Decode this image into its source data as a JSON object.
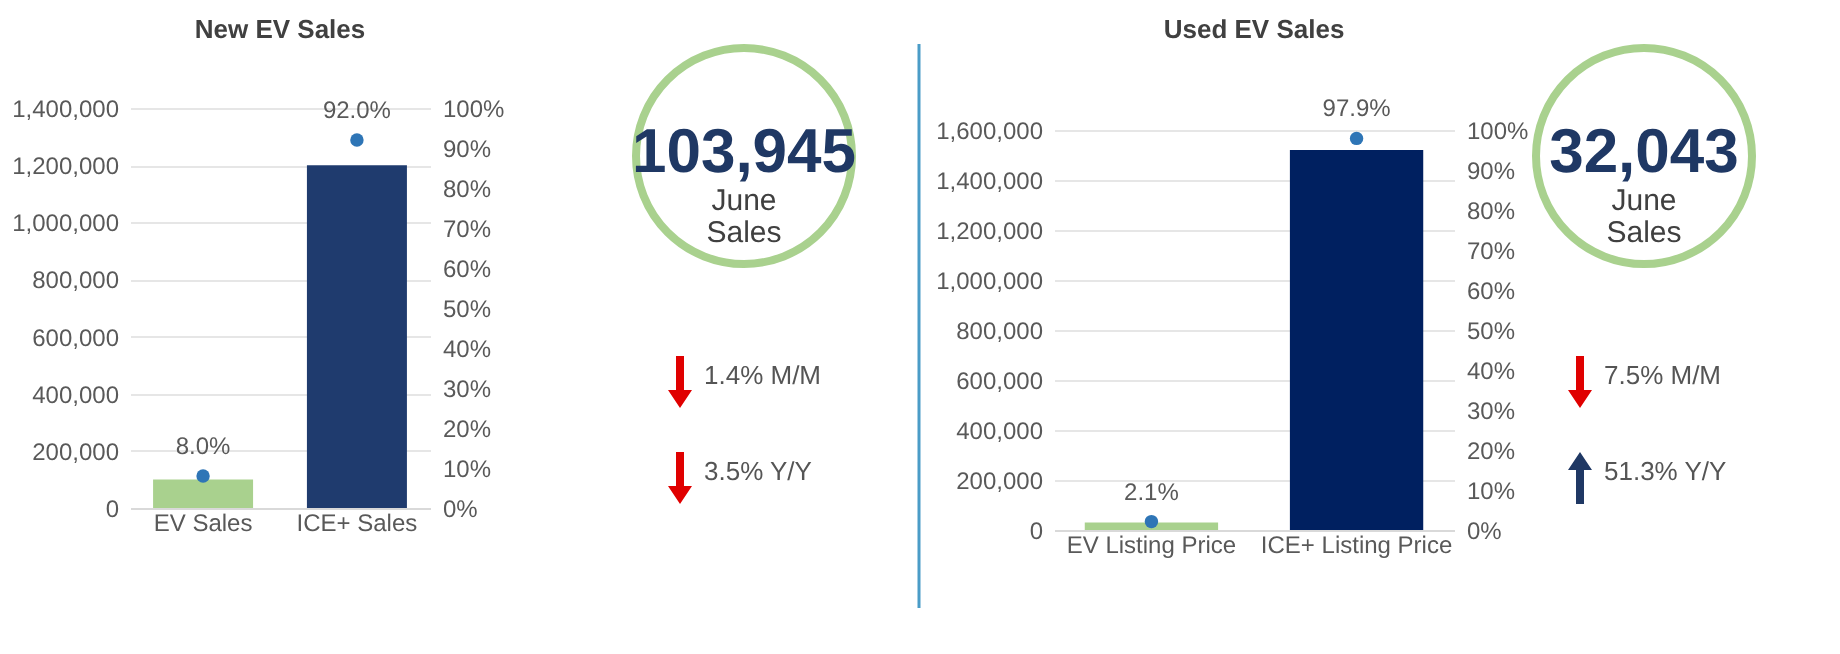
{
  "chart_data": [
    {
      "type": "bar",
      "title": "New EV Sales",
      "categories": [
        "EV Sales",
        "ICE+ Sales"
      ],
      "series": [
        {
          "type": "bar",
          "colors": [
            "#a9d18e",
            "#1f3b6e"
          ],
          "values": [
            100000,
            1200000
          ]
        },
        {
          "type": "scatter",
          "axis": "y2",
          "color": "#2e75b6",
          "values": [
            8.0,
            92.0
          ],
          "value_labels": [
            "8.0%",
            "92.0%"
          ]
        }
      ],
      "ylim": [
        0,
        1400000
      ],
      "yticks": [
        0,
        {
          "value": 200000,
          "label": "200,000"
        },
        {
          "value": 400000,
          "label": "400,000"
        },
        {
          "value": 600000,
          "label": "600,000"
        },
        {
          "value": 800000,
          "label": "800,000"
        },
        {
          "value": 1000000,
          "label": "1,000,000"
        },
        {
          "value": 1200000,
          "label": "1,200,000"
        },
        {
          "value": 1400000,
          "label": "1,400,000"
        }
      ],
      "y2lim": [
        0,
        100
      ],
      "y2ticks": [
        {
          "value": 0,
          "label": "0%"
        },
        {
          "value": 10,
          "label": "10%"
        },
        {
          "value": 20,
          "label": "20%"
        },
        {
          "value": 30,
          "label": "30%"
        },
        {
          "value": 40,
          "label": "40%"
        },
        {
          "value": 50,
          "label": "50%"
        },
        {
          "value": 60,
          "label": "60%"
        },
        {
          "value": 70,
          "label": "70%"
        },
        {
          "value": 80,
          "label": "80%"
        },
        {
          "value": 90,
          "label": "90%"
        },
        {
          "value": 100,
          "label": "100%"
        }
      ],
      "grid": "y",
      "marker": "circle"
    },
    {
      "type": "other",
      "annotations": [
        "103,945",
        "June",
        "Sales",
        "1.4% M/M",
        "3.5% Y/Y"
      ]
    },
    {
      "type": "bar",
      "title": "Used EV Sales",
      "categories": [
        "EV Listing Price",
        "ICE+ Listing Price"
      ],
      "series": [
        {
          "type": "bar",
          "colors": [
            "#a9d18e",
            "#002060"
          ],
          "values": [
            30000,
            1520000
          ]
        },
        {
          "type": "scatter",
          "axis": "y2",
          "color": "#2e75b6",
          "values": [
            2.1,
            97.9
          ],
          "value_labels": [
            "2.1%",
            "97.9%"
          ]
        }
      ],
      "ylim": [
        0,
        1600000
      ],
      "yticks": [
        0,
        {
          "value": 200000,
          "label": "200,000"
        },
        {
          "value": 400000,
          "label": "400,000"
        },
        {
          "value": 600000,
          "label": "600,000"
        },
        {
          "value": 800000,
          "label": "800,000"
        },
        {
          "value": 1000000,
          "label": "1,000,000"
        },
        {
          "value": 1200000,
          "label": "1,200,000"
        },
        {
          "value": 1400000,
          "label": "1,400,000"
        },
        {
          "value": 1600000,
          "label": "1,600,000"
        }
      ],
      "y2lim": [
        0,
        100
      ],
      "y2ticks": [
        {
          "value": 0,
          "label": "0%"
        },
        {
          "value": 10,
          "label": "10%"
        },
        {
          "value": 20,
          "label": "20%"
        },
        {
          "value": 30,
          "label": "30%"
        },
        {
          "value": 40,
          "label": "40%"
        },
        {
          "value": 50,
          "label": "50%"
        },
        {
          "value": 60,
          "label": "60%"
        },
        {
          "value": 70,
          "label": "70%"
        },
        {
          "value": 80,
          "label": "80%"
        },
        {
          "value": 90,
          "label": "90%"
        },
        {
          "value": 100,
          "label": "100%"
        }
      ],
      "grid": "y",
      "marker": "circle"
    },
    {
      "type": "other",
      "annotations": [
        "32,043",
        "June",
        "Sales",
        "7.5% M/M",
        "51.3% Y/Y"
      ]
    }
  ]
}
